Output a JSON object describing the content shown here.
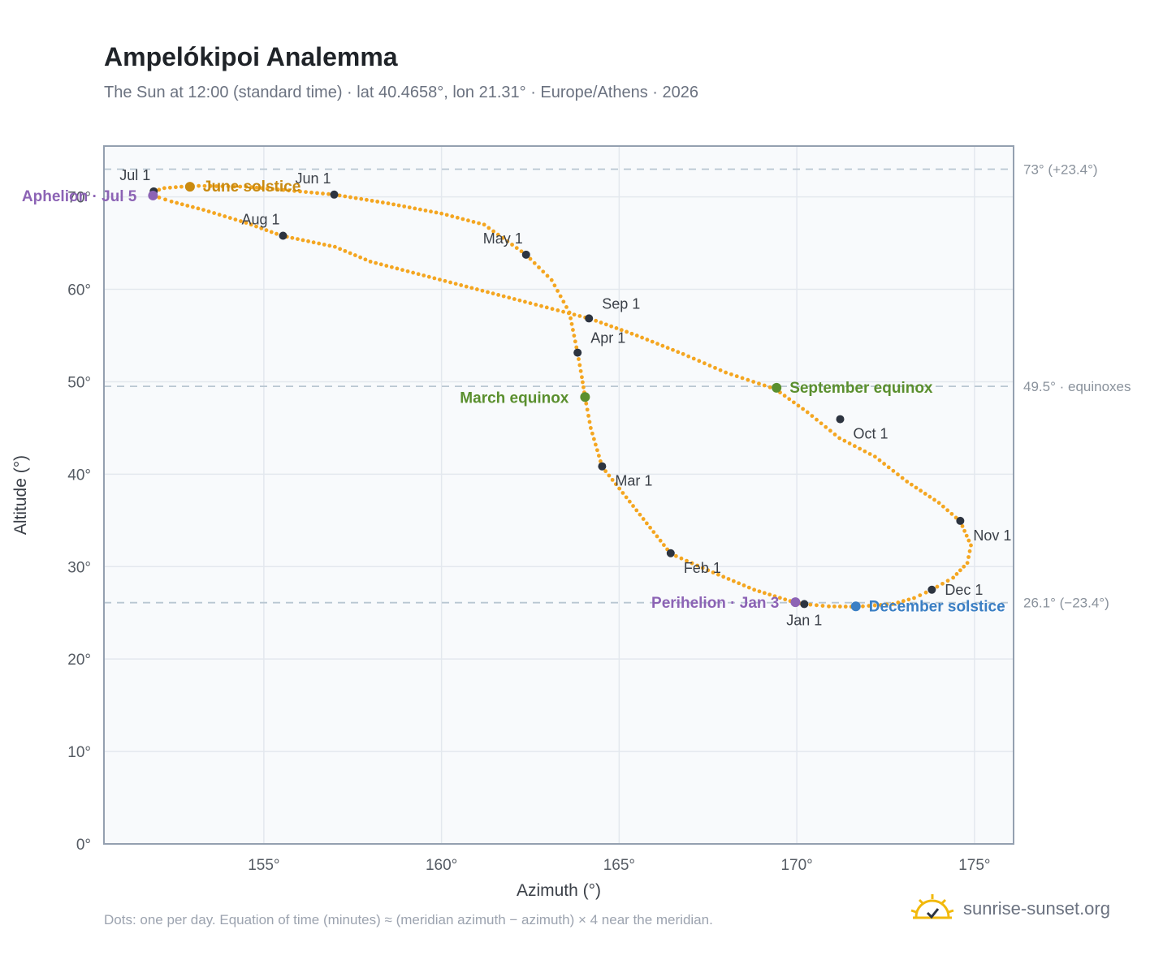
{
  "title": "Ampelókipoi Analemma",
  "subtitle": "The Sun at 12:00 (standard time) · lat 40.4658°, lon 21.31° · Europe/Athens · 2026",
  "footnote": "Dots: one per day. Equation of time (minutes) ≈ (meridian azimuth − azimuth) × 4 near the meridian.",
  "brand": {
    "name": "sunrise-sunset.org",
    "icon": "sun-logo-icon"
  },
  "colors": {
    "path": "#f4a621",
    "month_dot": "#2d3440",
    "solstice_june": "#c98a10",
    "equinox": "#5a8f2e",
    "solstice_december": "#3b7fc4",
    "apsis": "#8c63b5",
    "reference_line": "#b9c7d2",
    "plot_bg": "#f8fafc",
    "grid": "#e3e8ee",
    "frame": "#94a0b0"
  },
  "chart_data": {
    "type": "scatter",
    "xlabel": "Azimuth (°)",
    "ylabel": "Altitude (°)",
    "xlim": [
      150.5,
      176.1
    ],
    "ylim": [
      0,
      75.5
    ],
    "x_ticks": [
      155,
      160,
      165,
      170,
      175
    ],
    "y_ticks": [
      0,
      10,
      20,
      30,
      40,
      50,
      60,
      70
    ],
    "tick_suffix": "°",
    "grid": true,
    "reference_lines": [
      {
        "y": 73.0,
        "label": "73° (+23.4°)"
      },
      {
        "y": 49.5,
        "label": "49.5° · equinoxes"
      },
      {
        "y": 26.1,
        "label": "26.1° (−23.4°)"
      }
    ],
    "series": [
      {
        "points": [
          [
            170.21,
            25.95
          ],
          [
            170.9,
            25.7
          ],
          [
            171.69,
            25.66
          ],
          [
            172.7,
            25.95
          ],
          [
            173.3,
            26.6
          ],
          [
            173.8,
            27.5
          ],
          [
            174.4,
            28.8
          ],
          [
            174.8,
            30.4
          ],
          [
            174.9,
            32.3
          ],
          [
            174.6,
            34.9
          ],
          [
            174.0,
            36.9
          ],
          [
            173.1,
            39.2
          ],
          [
            172.2,
            41.9
          ],
          [
            171.2,
            43.9
          ],
          [
            170.3,
            46.7
          ],
          [
            169.4,
            49.2
          ],
          [
            168.0,
            51.0
          ],
          [
            166.8,
            53.0
          ],
          [
            165.5,
            55.0
          ],
          [
            164.2,
            56.8
          ],
          [
            162.5,
            58.5
          ],
          [
            161.0,
            60.0
          ],
          [
            159.5,
            61.5
          ],
          [
            158.0,
            63.0
          ],
          [
            157.0,
            64.6
          ],
          [
            155.5,
            65.8
          ],
          [
            154.5,
            67.2
          ],
          [
            153.3,
            68.6
          ],
          [
            152.4,
            69.5
          ],
          [
            151.88,
            70.15
          ],
          [
            151.9,
            70.6
          ],
          [
            152.2,
            70.95
          ],
          [
            153.0,
            71.2
          ],
          [
            154.5,
            71.1
          ],
          [
            155.7,
            70.7
          ],
          [
            156.98,
            70.25
          ],
          [
            158.5,
            69.3
          ],
          [
            160.0,
            68.2
          ],
          [
            161.2,
            67.0
          ],
          [
            162.38,
            63.75
          ],
          [
            163.1,
            61.0
          ],
          [
            163.6,
            57.5
          ],
          [
            163.83,
            53.1
          ],
          [
            163.95,
            50.5
          ],
          [
            164.04,
            48.3
          ],
          [
            164.2,
            45.0
          ],
          [
            164.52,
            40.8
          ],
          [
            165.2,
            37.5
          ],
          [
            166.45,
            31.4
          ],
          [
            167.5,
            29.6
          ],
          [
            168.8,
            27.5
          ],
          [
            169.96,
            26.1
          ],
          [
            170.21,
            25.95
          ]
        ]
      }
    ],
    "month_markers": [
      {
        "label": "Jan 1",
        "x": 170.21,
        "y": 25.95,
        "anchor": "below"
      },
      {
        "label": "Feb 1",
        "x": 166.45,
        "y": 31.45,
        "anchor": "below-right"
      },
      {
        "label": "Mar 1",
        "x": 164.52,
        "y": 40.85,
        "anchor": "below-right"
      },
      {
        "label": "Apr 1",
        "x": 163.83,
        "y": 53.15,
        "anchor": "above-right"
      },
      {
        "label": "May 1",
        "x": 162.38,
        "y": 63.75,
        "anchor": "above-left"
      },
      {
        "label": "Jun 1",
        "x": 156.98,
        "y": 70.25,
        "anchor": "above-left"
      },
      {
        "label": "Jul 1",
        "x": 151.9,
        "y": 70.6,
        "anchor": "above-left"
      },
      {
        "label": "Aug 1",
        "x": 155.54,
        "y": 65.8,
        "anchor": "above-left"
      },
      {
        "label": "Sep 1",
        "x": 164.15,
        "y": 56.85,
        "anchor": "above-right"
      },
      {
        "label": "Oct 1",
        "x": 171.22,
        "y": 45.95,
        "anchor": "below-right"
      },
      {
        "label": "Nov 1",
        "x": 174.6,
        "y": 34.95,
        "anchor": "below-right"
      },
      {
        "label": "Dec 1",
        "x": 173.8,
        "y": 27.5,
        "anchor": "right"
      }
    ],
    "events": [
      {
        "label": "June solstice",
        "x": 152.92,
        "y": 71.1,
        "color": "#c98a10",
        "anchor": "right"
      },
      {
        "label": "March equinox",
        "x": 164.04,
        "y": 48.35,
        "color": "#5a8f2e",
        "anchor": "left"
      },
      {
        "label": "September equinox",
        "x": 169.43,
        "y": 49.35,
        "color": "#5a8f2e",
        "anchor": "right"
      },
      {
        "label": "December solstice",
        "x": 171.66,
        "y": 25.7,
        "color": "#3b7fc4",
        "anchor": "right"
      },
      {
        "label": "Aphelion · Jul 5",
        "x": 151.88,
        "y": 70.15,
        "color": "#8c63b5",
        "anchor": "left"
      },
      {
        "label": "Perihelion · Jan 3",
        "x": 169.96,
        "y": 26.15,
        "color": "#8c63b5",
        "anchor": "left"
      }
    ]
  }
}
